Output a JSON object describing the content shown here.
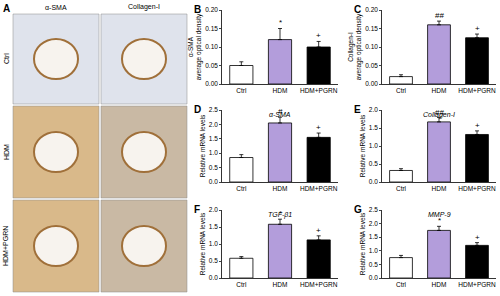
{
  "image_panel": {
    "panel": "A",
    "columns": [
      "α-SMA",
      "Collagen-I"
    ],
    "rows": [
      "Ctrl",
      "HDM",
      "HDM+PGRN"
    ]
  },
  "chart_data": [
    {
      "type": "bar",
      "panel": "B",
      "ylabel": "α-SMA\naverage optical density",
      "categories": [
        "Ctrl",
        "HDM",
        "HDM+PGRN"
      ],
      "values": [
        0.05,
        0.12,
        0.1
      ],
      "errors": [
        0.01,
        0.03,
        0.015
      ],
      "colors": [
        "#ffffff",
        "#b39ddb",
        "#000000"
      ],
      "ylim": [
        0,
        0.2
      ],
      "yticks": [
        {
          "value": 0,
          "label": "0.00"
        },
        {
          "value": 0.05,
          "label": "0.05"
        },
        {
          "value": 0.1,
          "label": "0.10"
        },
        {
          "value": 0.15,
          "label": "0.15"
        },
        {
          "value": 0.2,
          "label": "0.20"
        }
      ],
      "annotations": [
        {
          "text": "*",
          "category": "HDM"
        },
        {
          "text": "+",
          "category": "HDM+PGRN"
        }
      ]
    },
    {
      "type": "bar",
      "panel": "C",
      "ylabel": "Collagen-I\naverage optical density",
      "categories": [
        "Ctrl",
        "HDM",
        "HDM+PGRN"
      ],
      "values": [
        0.02,
        0.16,
        0.125
      ],
      "errors": [
        0.005,
        0.01,
        0.01
      ],
      "colors": [
        "#ffffff",
        "#b39ddb",
        "#000000"
      ],
      "ylim": [
        0,
        0.2
      ],
      "yticks": [
        {
          "value": 0,
          "label": "0.00"
        },
        {
          "value": 0.05,
          "label": "0.05"
        },
        {
          "value": 0.1,
          "label": "0.10"
        },
        {
          "value": 0.15,
          "label": "0.15"
        },
        {
          "value": 0.2,
          "label": "0.20"
        }
      ],
      "annotations": [
        {
          "text": "##",
          "category": "HDM"
        },
        {
          "text": "+",
          "category": "HDM+PGRN"
        }
      ]
    },
    {
      "type": "bar",
      "panel": "D",
      "title": "α-SMA",
      "ylabel": "Relative mRNA levels",
      "categories": [
        "Ctrl",
        "HDM",
        "HDM+PGRN"
      ],
      "values": [
        0.85,
        2.05,
        1.55
      ],
      "errors": [
        0.1,
        0.2,
        0.15
      ],
      "colors": [
        "#ffffff",
        "#b39ddb",
        "#000000"
      ],
      "ylim": [
        0,
        2.5
      ],
      "yticks": [
        {
          "value": 0,
          "label": "0.0"
        },
        0.5,
        {
          "value": 1,
          "label": "1.0"
        },
        1.5,
        {
          "value": 2,
          "label": "2.0"
        },
        2.5
      ],
      "annotations": [
        {
          "text": "#",
          "category": "HDM"
        },
        {
          "text": "+",
          "category": "HDM+PGRN"
        }
      ]
    },
    {
      "type": "bar",
      "panel": "E",
      "title": "Collagen-I",
      "ylabel": "Relative mRNA levels",
      "categories": [
        "Ctrl",
        "HDM",
        "HDM+PGRN"
      ],
      "values": [
        0.32,
        1.67,
        1.32
      ],
      "errors": [
        0.05,
        0.12,
        0.1
      ],
      "colors": [
        "#ffffff",
        "#b39ddb",
        "#000000"
      ],
      "ylim": [
        0,
        2
      ],
      "yticks": [
        {
          "value": 0,
          "label": "0.0"
        },
        0.5,
        {
          "value": 1,
          "label": "1.0"
        },
        1.5,
        {
          "value": 2,
          "label": "2.0"
        }
      ],
      "annotations": [
        {
          "text": "##",
          "category": "HDM"
        },
        {
          "text": "+",
          "category": "HDM+PGRN"
        }
      ]
    },
    {
      "type": "bar",
      "panel": "F",
      "title": "TGF-β1",
      "ylabel": "Relative mRNA levels",
      "categories": [
        "Ctrl",
        "HDM",
        "HDM+PGRN"
      ],
      "values": [
        0.58,
        1.58,
        1.12
      ],
      "errors": [
        0.05,
        0.15,
        0.12
      ],
      "colors": [
        "#ffffff",
        "#b39ddb",
        "#000000"
      ],
      "ylim": [
        0,
        2
      ],
      "yticks": [
        {
          "value": 0,
          "label": "0.0"
        },
        0.5,
        {
          "value": 1,
          "label": "1.0"
        },
        1.5,
        {
          "value": 2,
          "label": "2.0"
        }
      ],
      "annotations": [
        {
          "text": "*",
          "category": "HDM"
        },
        {
          "text": "+",
          "category": "HDM+PGRN"
        }
      ]
    },
    {
      "type": "bar",
      "panel": "G",
      "title": "MMP-9",
      "ylabel": "Relative mRNA levels",
      "categories": [
        "Ctrl",
        "HDM",
        "HDM+PGRN"
      ],
      "values": [
        0.75,
        1.75,
        1.2
      ],
      "errors": [
        0.08,
        0.15,
        0.1
      ],
      "colors": [
        "#ffffff",
        "#b39ddb",
        "#000000"
      ],
      "ylim": [
        0,
        2.5
      ],
      "yticks": [
        {
          "value": 0,
          "label": "0.0"
        },
        0.5,
        {
          "value": 1,
          "label": "1.0"
        },
        1.5,
        {
          "value": 2,
          "label": "2.0"
        },
        2.5
      ],
      "annotations": [
        {
          "text": "*",
          "category": "HDM"
        },
        {
          "text": "+",
          "category": "HDM+PGRN"
        }
      ]
    }
  ]
}
